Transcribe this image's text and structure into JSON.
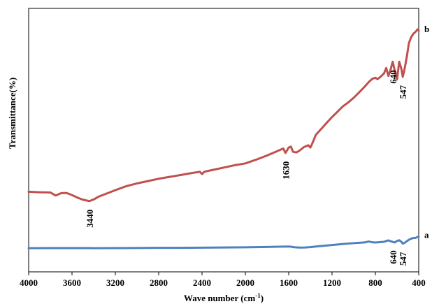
{
  "chart_data": {
    "type": "line",
    "title": "",
    "xlabel": "Wave number (cm",
    "xlabel_sup": "-1",
    "xlabel_suffix": ")",
    "ylabel": "Transmittance(%)",
    "xlim": [
      4000,
      400
    ],
    "x_reversed": true,
    "ylim": [
      0,
      100
    ],
    "grid": false,
    "x_ticks": [
      {
        "value": 4000,
        "label": "4000"
      },
      {
        "value": 3600,
        "label": "3600"
      },
      {
        "value": 3200,
        "label": "3200"
      },
      {
        "value": 2800,
        "label": "2800"
      },
      {
        "value": 2400,
        "label": "2400"
      },
      {
        "value": 2000,
        "label": "2000"
      },
      {
        "value": 1600,
        "label": "1600"
      },
      {
        "value": 1200,
        "label": "1200"
      },
      {
        "value": 800,
        "label": "800"
      },
      {
        "value": 400,
        "label": "400"
      }
    ],
    "series": [
      {
        "name": "b",
        "color": "#c0504d",
        "x": [
          4000,
          3900,
          3800,
          3750,
          3700,
          3650,
          3600,
          3550,
          3500,
          3440,
          3400,
          3350,
          3300,
          3200,
          3100,
          3000,
          2900,
          2800,
          2700,
          2600,
          2500,
          2420,
          2400,
          2380,
          2300,
          2200,
          2100,
          2000,
          1900,
          1800,
          1700,
          1650,
          1630,
          1600,
          1580,
          1560,
          1530,
          1500,
          1460,
          1420,
          1400,
          1380,
          1350,
          1300,
          1250,
          1200,
          1150,
          1100,
          1050,
          1000,
          950,
          900,
          860,
          830,
          800,
          780,
          750,
          720,
          700,
          680,
          660,
          640,
          620,
          600,
          580,
          560,
          547,
          530,
          510,
          490,
          470,
          450,
          430,
          410,
          400
        ],
        "y": [
          30.2,
          30.0,
          29.9,
          28.6,
          29.6,
          29.7,
          28.8,
          27.7,
          26.8,
          26.2,
          26.9,
          28.2,
          29.1,
          30.9,
          32.6,
          33.8,
          34.8,
          35.8,
          36.6,
          37.4,
          38.2,
          38.8,
          37.8,
          38.8,
          39.6,
          40.6,
          41.6,
          42.4,
          44.0,
          45.8,
          47.8,
          48.8,
          46.9,
          49.2,
          49.6,
          47.4,
          47.1,
          47.9,
          49.4,
          50.2,
          49.2,
          51.2,
          54.6,
          57.2,
          59.8,
          62.3,
          64.6,
          66.9,
          68.6,
          70.6,
          72.9,
          75.3,
          77.4,
          78.7,
          79.2,
          78.6,
          79.7,
          81.1,
          83.4,
          80.0,
          82.6,
          86.1,
          82.0,
          78.5,
          86.1,
          83.0,
          79.6,
          83.1,
          88.2,
          94.2,
          96.6,
          98.1,
          98.9,
          100.0,
          99.4
        ],
        "peak_labels": [
          {
            "x": 3440,
            "text": "3440"
          },
          {
            "x": 1630,
            "text": "1630"
          },
          {
            "x": 640,
            "text": "640"
          },
          {
            "x": 547,
            "text": "547"
          }
        ]
      },
      {
        "name": "a",
        "color": "#4f81bd",
        "x": [
          4000,
          3800,
          3600,
          3400,
          3200,
          3000,
          2800,
          2600,
          2400,
          2200,
          2000,
          1800,
          1700,
          1650,
          1600,
          1580,
          1550,
          1500,
          1450,
          1400,
          1350,
          1300,
          1200,
          1100,
          1000,
          900,
          860,
          830,
          800,
          760,
          720,
          680,
          640,
          620,
          600,
          580,
          560,
          547,
          530,
          510,
          490,
          470,
          450,
          430,
          410,
          400
        ],
        "y": [
          17.1,
          17.2,
          17.2,
          17.1,
          17.2,
          17.3,
          17.5,
          17.6,
          17.8,
          18.0,
          18.3,
          18.8,
          19.2,
          19.3,
          19.4,
          19.2,
          18.4,
          17.9,
          18.1,
          18.6,
          19.4,
          20.2,
          21.6,
          23.1,
          24.3,
          25.4,
          26.7,
          25.6,
          25.2,
          25.8,
          26.3,
          28.3,
          26.1,
          25.4,
          27.6,
          28.5,
          26.3,
          23.6,
          24.8,
          27.1,
          29.2,
          30.8,
          31.8,
          31.9,
          33.4,
          33.6
        ],
        "peak_labels": [
          {
            "x": 640,
            "text": "640"
          },
          {
            "x": 547,
            "text": "547"
          }
        ]
      }
    ]
  }
}
